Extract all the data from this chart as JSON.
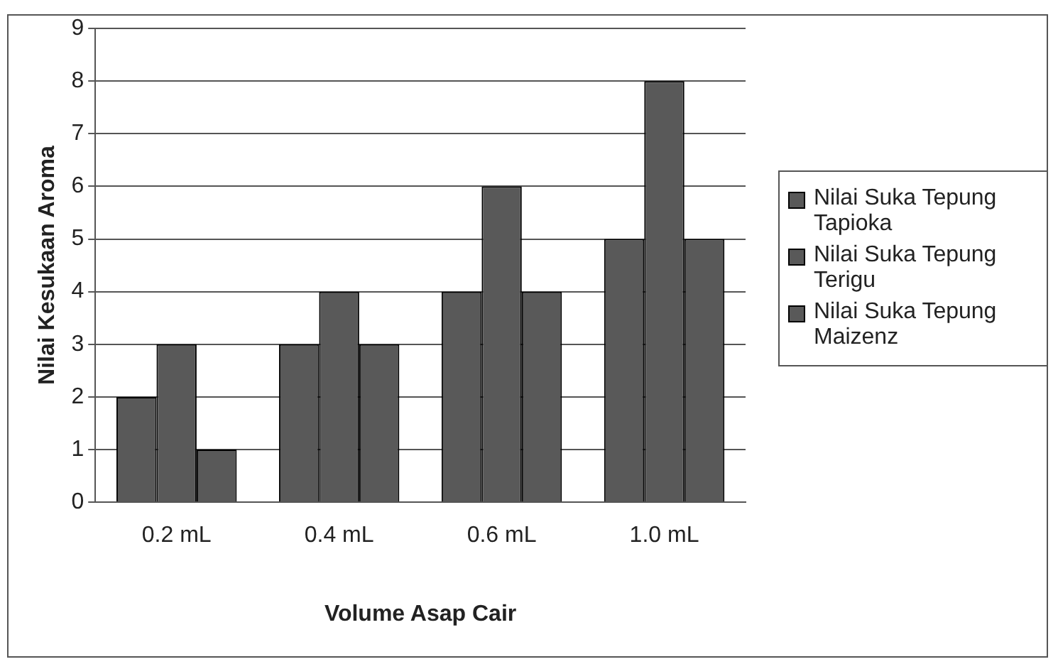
{
  "chart_data": {
    "type": "bar",
    "xlabel": "Volume Asap Cair",
    "ylabel": "Nilai Kesukaan Aroma",
    "categories": [
      "0.2 mL",
      "0.4 mL",
      "0.6 mL",
      "1.0 mL"
    ],
    "series": [
      {
        "name": "Nilai Suka Tepung Tapioka",
        "color": "#595959",
        "values": [
          2,
          3,
          4,
          5
        ]
      },
      {
        "name": "Nilai Suka Tepung Terigu",
        "color": "#595959",
        "values": [
          3,
          4,
          6,
          8
        ]
      },
      {
        "name": "Nilai Suka Tepung Maizenz",
        "color": "#595959",
        "values": [
          1,
          3,
          4,
          5
        ]
      }
    ],
    "ylim": [
      0,
      9
    ],
    "yticks": [
      0,
      1,
      2,
      3,
      4,
      5,
      6,
      7,
      8,
      9
    ],
    "grid": "y",
    "legend": "right"
  }
}
